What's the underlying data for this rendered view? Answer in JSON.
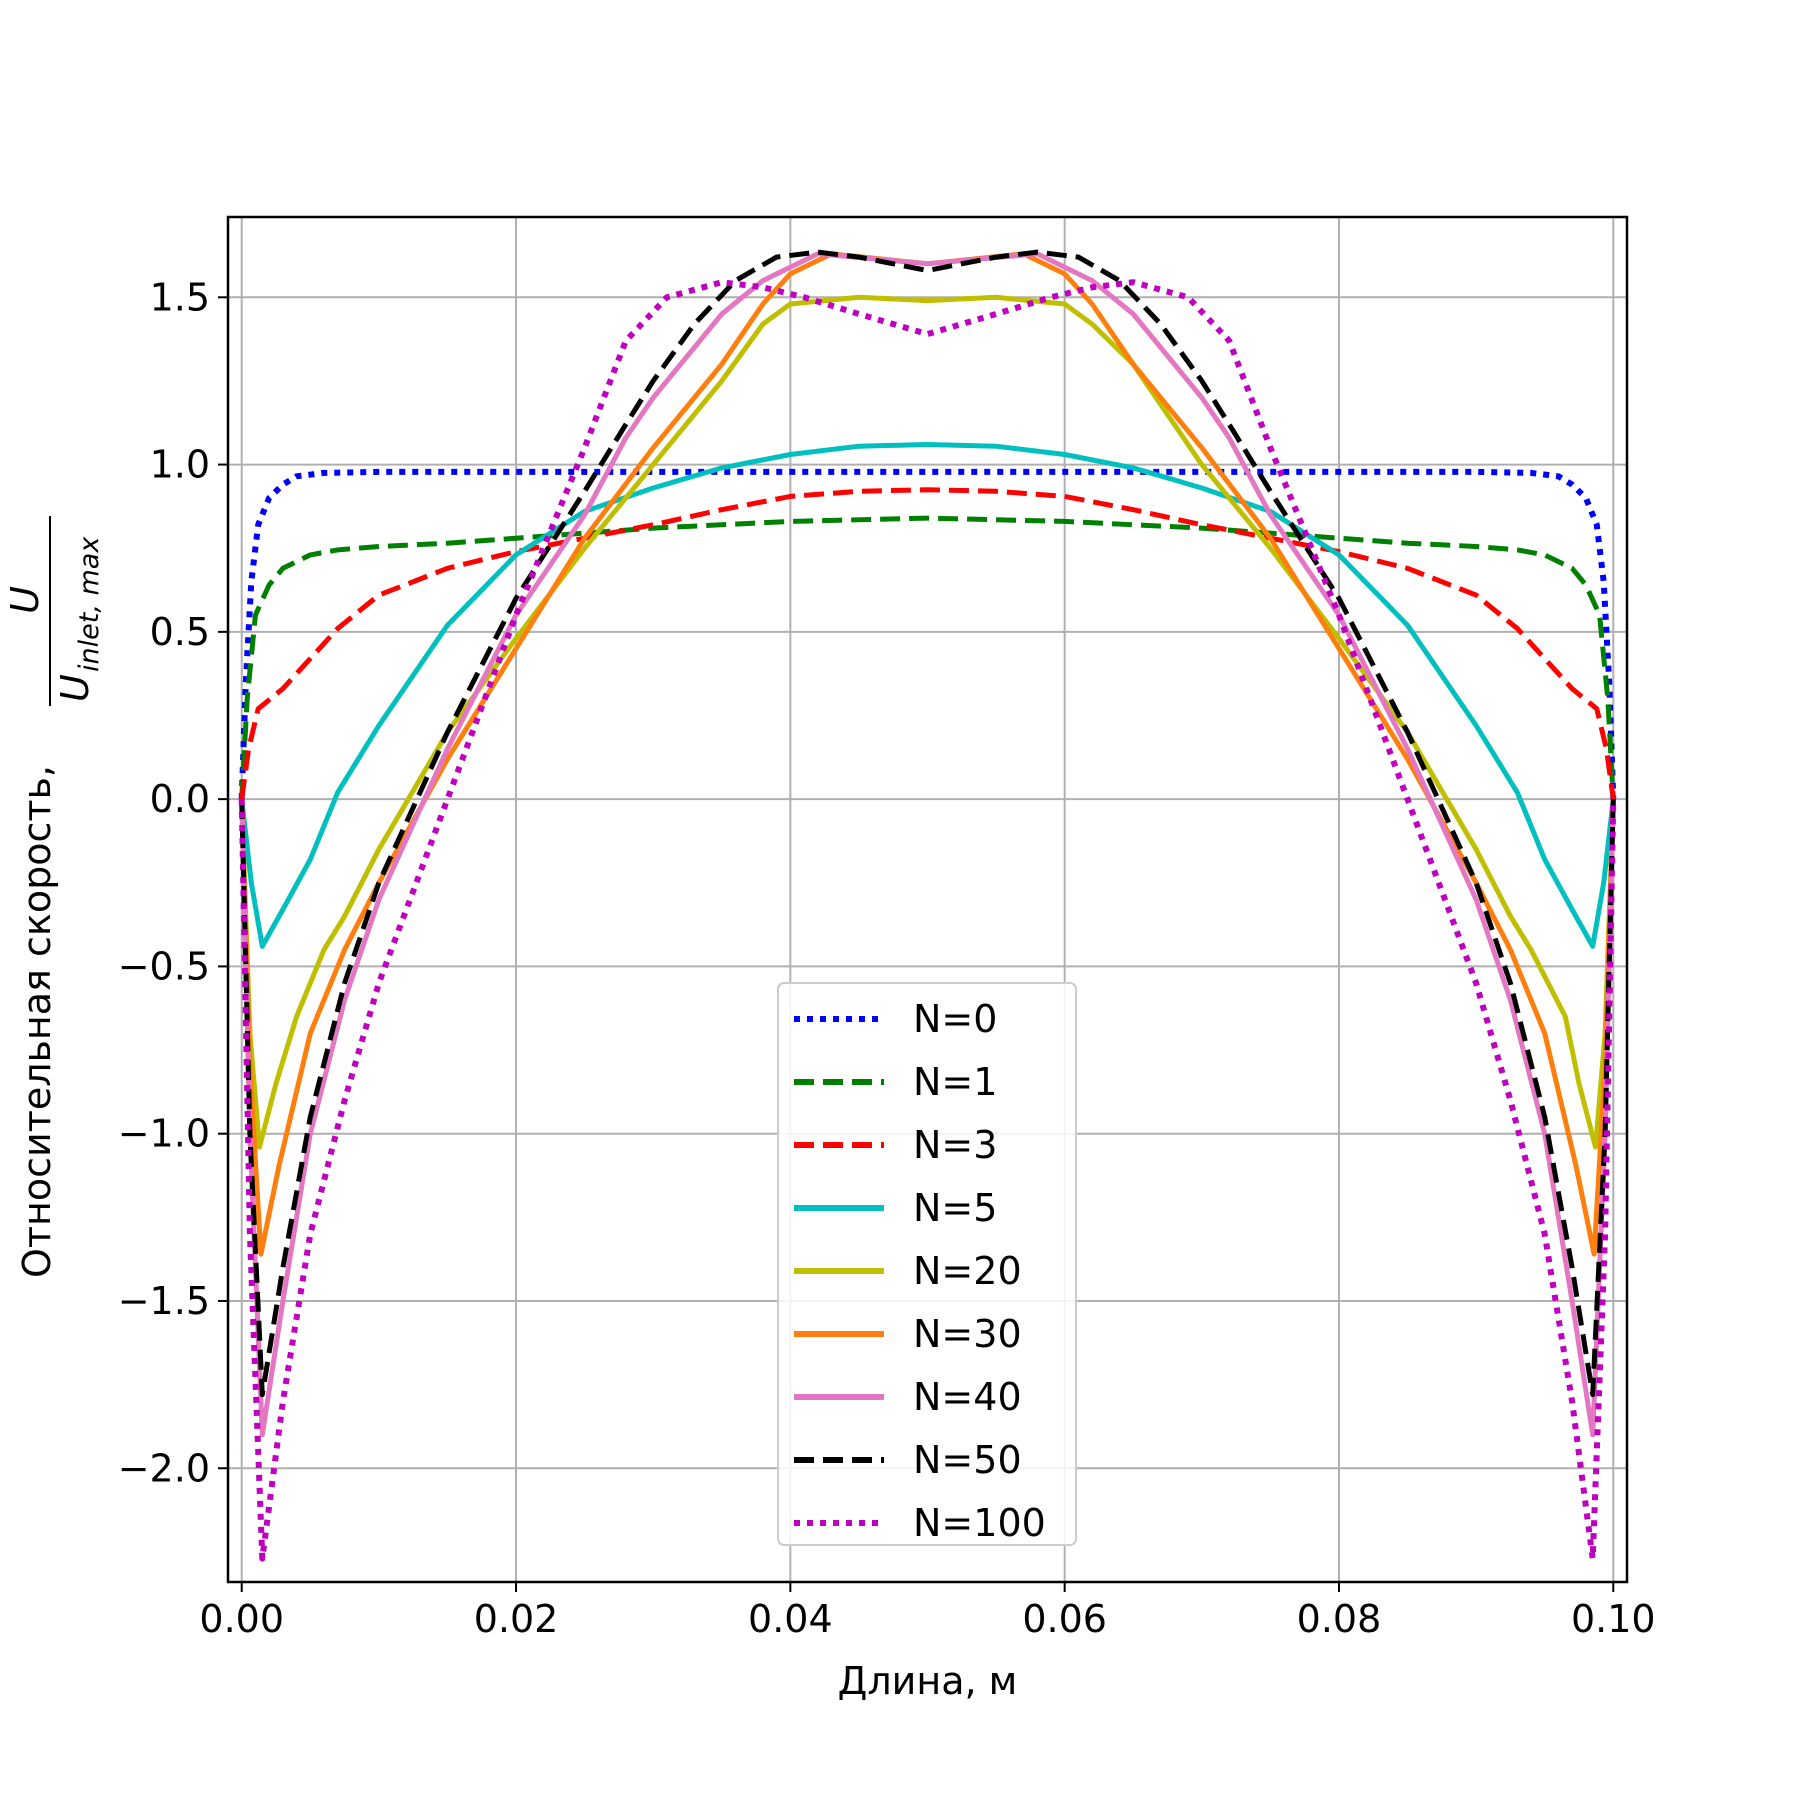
{
  "chart_data": {
    "type": "line",
    "title": "",
    "xlabel": "Длина, м",
    "ylabel": {
      "text": "Относительная скорость, ",
      "fraction_numerator": "U",
      "fraction_denominator": "U",
      "denominator_subscript": "inlet, max"
    },
    "xlim": [
      -0.001,
      0.101
    ],
    "ylim": [
      -2.34,
      1.74
    ],
    "xticks": [
      0.0,
      0.02,
      0.04,
      0.06,
      0.08,
      0.1
    ],
    "xtick_labels": [
      "0.00",
      "0.02",
      "0.04",
      "0.06",
      "0.08",
      "0.10"
    ],
    "yticks": [
      -2.0,
      -1.5,
      -1.0,
      -0.5,
      0.0,
      0.5,
      1.0,
      1.5
    ],
    "ytick_labels": [
      "−2.0",
      "−1.5",
      "−1.0",
      "−0.5",
      "0.0",
      "0.5",
      "1.0",
      "1.5"
    ],
    "grid": true,
    "legend_position": "lower-center",
    "series": [
      {
        "name": "N=0",
        "color": "#0000ff",
        "style": "dotted",
        "x": [
          0,
          0.0003,
          0.0007,
          0.0012,
          0.002,
          0.003,
          0.004,
          0.006,
          0.01,
          0.02,
          0.03,
          0.04,
          0.05,
          0.06,
          0.07,
          0.08,
          0.09,
          0.094,
          0.096,
          0.097,
          0.098,
          0.0988,
          0.0993,
          0.0997,
          0.1
        ],
        "y": [
          0,
          0.35,
          0.65,
          0.82,
          0.9,
          0.94,
          0.965,
          0.975,
          0.978,
          0.978,
          0.978,
          0.978,
          0.978,
          0.978,
          0.978,
          0.978,
          0.978,
          0.975,
          0.965,
          0.94,
          0.9,
          0.82,
          0.65,
          0.35,
          0
        ]
      },
      {
        "name": "N=1",
        "color": "#008000",
        "style": "dashed",
        "x": [
          0,
          0.0004,
          0.001,
          0.002,
          0.003,
          0.004,
          0.005,
          0.007,
          0.01,
          0.015,
          0.02,
          0.03,
          0.04,
          0.05,
          0.06,
          0.07,
          0.08,
          0.085,
          0.09,
          0.093,
          0.095,
          0.096,
          0.097,
          0.098,
          0.099,
          0.0996,
          0.1
        ],
        "y": [
          0,
          0.3,
          0.55,
          0.64,
          0.69,
          0.71,
          0.73,
          0.745,
          0.755,
          0.765,
          0.78,
          0.81,
          0.83,
          0.84,
          0.83,
          0.81,
          0.78,
          0.765,
          0.755,
          0.745,
          0.73,
          0.71,
          0.69,
          0.64,
          0.55,
          0.3,
          0
        ]
      },
      {
        "name": "N=3",
        "color": "#ff0000",
        "style": "dashed",
        "x": [
          0,
          0.0005,
          0.0012,
          0.003,
          0.005,
          0.007,
          0.01,
          0.015,
          0.02,
          0.025,
          0.03,
          0.035,
          0.04,
          0.045,
          0.05,
          0.055,
          0.06,
          0.065,
          0.07,
          0.075,
          0.08,
          0.085,
          0.09,
          0.093,
          0.095,
          0.097,
          0.0988,
          0.0995,
          0.1
        ],
        "y": [
          0,
          0.15,
          0.27,
          0.33,
          0.42,
          0.51,
          0.61,
          0.69,
          0.74,
          0.78,
          0.82,
          0.865,
          0.905,
          0.92,
          0.925,
          0.92,
          0.905,
          0.865,
          0.82,
          0.78,
          0.74,
          0.69,
          0.61,
          0.51,
          0.42,
          0.33,
          0.27,
          0.15,
          0
        ]
      },
      {
        "name": "N=5",
        "color": "#00bfbf",
        "style": "solid",
        "x": [
          0,
          0.0007,
          0.0015,
          0.003,
          0.005,
          0.007,
          0.01,
          0.015,
          0.02,
          0.025,
          0.03,
          0.035,
          0.04,
          0.045,
          0.05,
          0.055,
          0.06,
          0.065,
          0.07,
          0.075,
          0.08,
          0.085,
          0.09,
          0.093,
          0.095,
          0.097,
          0.0985,
          0.0993,
          0.1
        ],
        "y": [
          0,
          -0.25,
          -0.44,
          -0.33,
          -0.18,
          0.02,
          0.22,
          0.52,
          0.73,
          0.86,
          0.93,
          0.99,
          1.03,
          1.055,
          1.06,
          1.055,
          1.03,
          0.99,
          0.93,
          0.86,
          0.73,
          0.52,
          0.22,
          0.02,
          -0.18,
          -0.33,
          -0.44,
          -0.25,
          0
        ]
      },
      {
        "name": "N=20",
        "color": "#bfbf00",
        "style": "solid",
        "x": [
          0,
          0.0006,
          0.0013,
          0.0025,
          0.004,
          0.006,
          0.0075,
          0.01,
          0.015,
          0.02,
          0.025,
          0.03,
          0.035,
          0.038,
          0.04,
          0.045,
          0.05,
          0.055,
          0.06,
          0.062,
          0.065,
          0.07,
          0.075,
          0.08,
          0.085,
          0.09,
          0.0925,
          0.094,
          0.0965,
          0.0975,
          0.0987,
          0.0994,
          0.1
        ],
        "y": [
          0,
          -0.7,
          -1.04,
          -0.85,
          -0.65,
          -0.45,
          -0.35,
          -0.15,
          0.2,
          0.48,
          0.75,
          1.0,
          1.25,
          1.42,
          1.48,
          1.5,
          1.49,
          1.5,
          1.48,
          1.42,
          1.3,
          1.0,
          0.75,
          0.48,
          0.2,
          -0.15,
          -0.35,
          -0.45,
          -0.65,
          -0.85,
          -1.04,
          -0.7,
          0
        ]
      },
      {
        "name": "N=30",
        "color": "#ff7f0e",
        "style": "solid",
        "x": [
          0,
          0.0006,
          0.0014,
          0.0027,
          0.005,
          0.0075,
          0.01,
          0.015,
          0.02,
          0.025,
          0.03,
          0.035,
          0.038,
          0.04,
          0.043,
          0.05,
          0.057,
          0.06,
          0.062,
          0.065,
          0.07,
          0.075,
          0.08,
          0.085,
          0.09,
          0.0925,
          0.095,
          0.0973,
          0.0986,
          0.0994,
          0.1
        ],
        "y": [
          0,
          -0.8,
          -1.36,
          -1.1,
          -0.7,
          -0.45,
          -0.25,
          0.12,
          0.45,
          0.78,
          1.05,
          1.3,
          1.48,
          1.57,
          1.63,
          1.6,
          1.63,
          1.57,
          1.48,
          1.3,
          1.05,
          0.78,
          0.45,
          0.12,
          -0.25,
          -0.45,
          -0.7,
          -1.1,
          -1.36,
          -0.8,
          0
        ]
      },
      {
        "name": "N=40",
        "color": "#e377c2",
        "style": "solid",
        "x": [
          0,
          0.0006,
          0.0015,
          0.003,
          0.005,
          0.0075,
          0.01,
          0.015,
          0.02,
          0.025,
          0.028,
          0.03,
          0.035,
          0.038,
          0.042,
          0.05,
          0.058,
          0.062,
          0.065,
          0.07,
          0.072,
          0.075,
          0.08,
          0.085,
          0.09,
          0.0925,
          0.095,
          0.097,
          0.0985,
          0.0994,
          0.1
        ],
        "y": [
          0,
          -1.0,
          -1.9,
          -1.5,
          -1.0,
          -0.6,
          -0.3,
          0.15,
          0.55,
          0.85,
          1.08,
          1.2,
          1.45,
          1.55,
          1.63,
          1.6,
          1.63,
          1.55,
          1.45,
          1.2,
          1.08,
          0.85,
          0.55,
          0.15,
          -0.3,
          -0.6,
          -1.0,
          -1.5,
          -1.9,
          -1.0,
          0
        ]
      },
      {
        "name": "N=50",
        "color": "#000000",
        "style": "dashed",
        "x": [
          0,
          0.0006,
          0.0015,
          0.003,
          0.005,
          0.0075,
          0.01,
          0.015,
          0.02,
          0.025,
          0.028,
          0.03,
          0.033,
          0.036,
          0.039,
          0.042,
          0.045,
          0.05,
          0.055,
          0.058,
          0.061,
          0.064,
          0.067,
          0.07,
          0.072,
          0.075,
          0.08,
          0.085,
          0.09,
          0.0925,
          0.095,
          0.097,
          0.0985,
          0.0994,
          0.1
        ],
        "y": [
          0,
          -1.0,
          -1.78,
          -1.4,
          -0.95,
          -0.55,
          -0.25,
          0.2,
          0.6,
          0.92,
          1.12,
          1.25,
          1.42,
          1.55,
          1.62,
          1.635,
          1.62,
          1.58,
          1.62,
          1.635,
          1.62,
          1.55,
          1.42,
          1.25,
          1.12,
          0.92,
          0.6,
          0.2,
          -0.25,
          -0.55,
          -0.95,
          -1.4,
          -1.78,
          -1.0,
          0
        ]
      },
      {
        "name": "N=100",
        "color": "#bf00bf",
        "style": "dotted",
        "x": [
          0,
          0.0006,
          0.0015,
          0.003,
          0.005,
          0.0075,
          0.01,
          0.015,
          0.02,
          0.025,
          0.028,
          0.031,
          0.035,
          0.038,
          0.041,
          0.045,
          0.05,
          0.055,
          0.059,
          0.062,
          0.065,
          0.069,
          0.072,
          0.075,
          0.08,
          0.085,
          0.09,
          0.0925,
          0.095,
          0.097,
          0.0985,
          0.0994,
          0.1
        ],
        "y": [
          0,
          -1.3,
          -2.27,
          -1.8,
          -1.3,
          -0.9,
          -0.55,
          0.0,
          0.55,
          1.05,
          1.37,
          1.5,
          1.545,
          1.53,
          1.5,
          1.45,
          1.39,
          1.45,
          1.5,
          1.53,
          1.545,
          1.5,
          1.37,
          1.05,
          0.55,
          0.0,
          -0.55,
          -0.9,
          -1.3,
          -1.8,
          -2.27,
          -1.3,
          0
        ]
      }
    ]
  }
}
